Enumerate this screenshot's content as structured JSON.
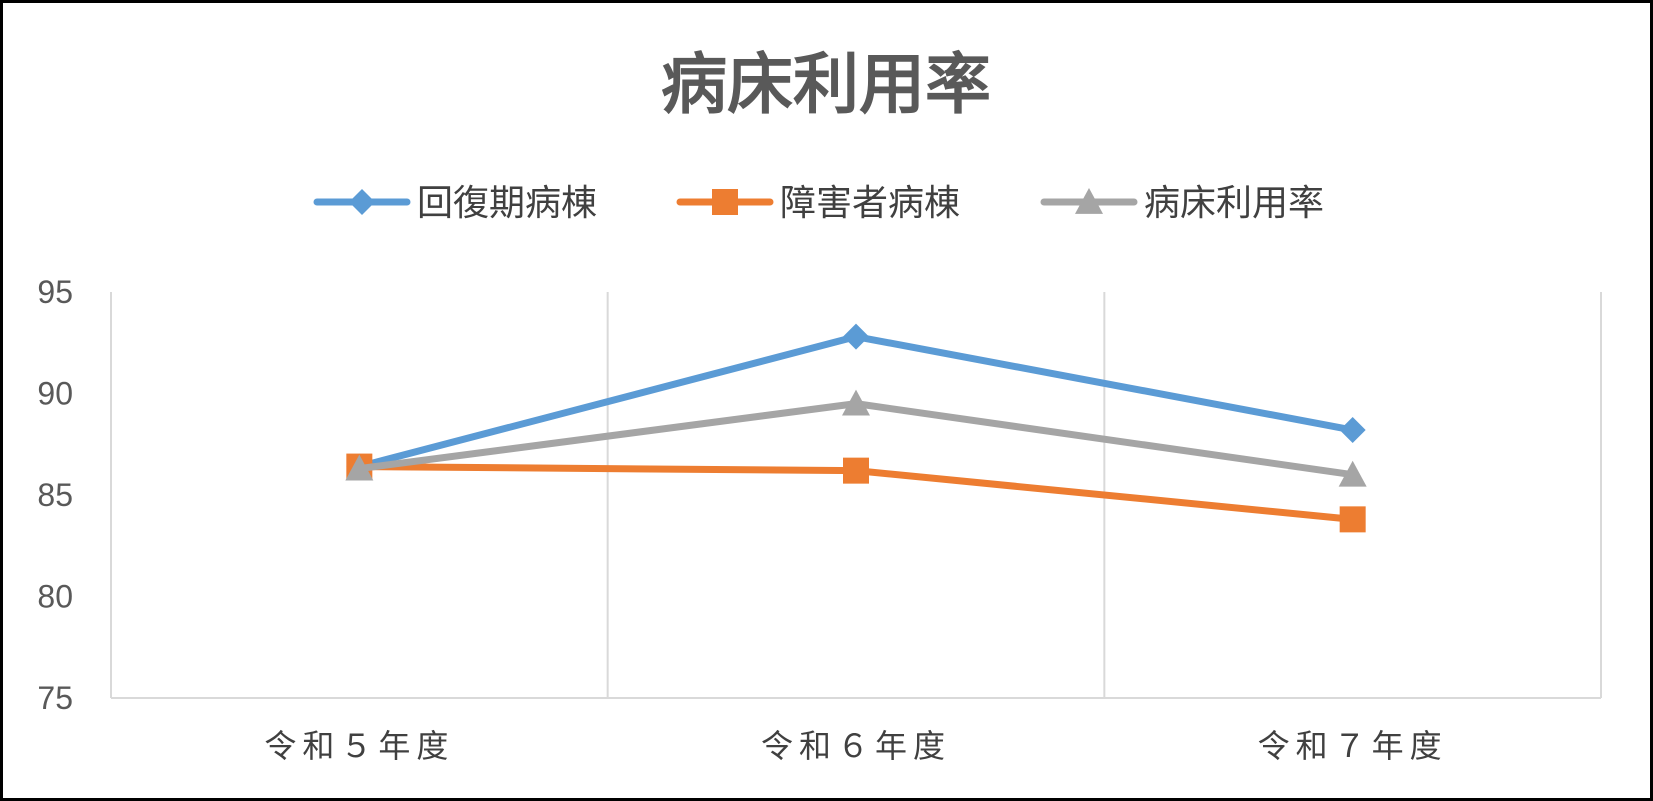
{
  "chart_data": {
    "type": "line",
    "title": "病床利用率",
    "categories": [
      "令和５年度",
      "令和６年度",
      "令和７年度"
    ],
    "series": [
      {
        "name": "回復期病棟",
        "values": [
          86.4,
          92.8,
          88.2
        ],
        "color": "#5b9bd5",
        "marker": "diamond"
      },
      {
        "name": "障害者病棟",
        "values": [
          86.4,
          86.2,
          83.8
        ],
        "color": "#ed7d31",
        "marker": "square"
      },
      {
        "name": "病床利用率",
        "values": [
          86.3,
          89.5,
          86.0
        ],
        "color": "#a5a5a5",
        "marker": "triangle"
      }
    ],
    "yticks": [
      75,
      80,
      85,
      90,
      95
    ],
    "ylim": [
      75,
      95
    ],
    "grid": "vertical",
    "legend": "top"
  }
}
